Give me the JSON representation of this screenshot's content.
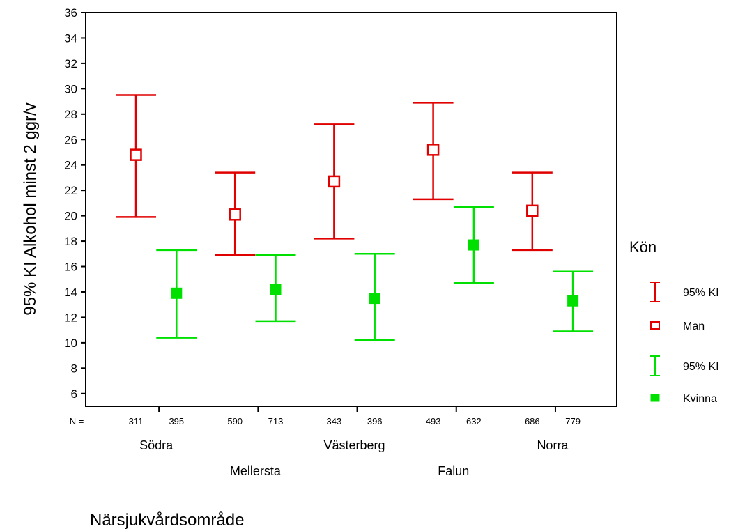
{
  "chart_data": {
    "type": "errorbar",
    "ylabel": "95% KI Alkohol minst 2 ggr/v",
    "xlabel": "Närsjukvårdsområde",
    "ylim": [
      5,
      36
    ],
    "yticks": [
      6,
      8,
      10,
      12,
      14,
      16,
      18,
      20,
      22,
      24,
      26,
      28,
      30,
      32,
      34,
      36
    ],
    "n_prefix": "N =",
    "categories": [
      {
        "name": "Södra",
        "row": 1
      },
      {
        "name": "Mellersta",
        "row": 2
      },
      {
        "name": "Västerberg",
        "row": 1
      },
      {
        "name": "Falun",
        "row": 2
      },
      {
        "name": "Norra",
        "row": 1
      }
    ],
    "series": [
      {
        "name": "Man",
        "color": "#e00000",
        "marker": "open-square",
        "mean": [
          24.8,
          20.1,
          22.7,
          25.2,
          20.4
        ],
        "lower": [
          19.9,
          16.9,
          18.2,
          21.3,
          17.3
        ],
        "upper": [
          29.5,
          23.4,
          27.2,
          28.9,
          23.4
        ],
        "n": [
          "311",
          "590",
          "343",
          "493",
          "686"
        ]
      },
      {
        "name": "Kvinna",
        "color": "#00e000",
        "marker": "filled-square",
        "mean": [
          13.9,
          14.2,
          13.5,
          17.7,
          13.3
        ],
        "lower": [
          10.4,
          11.7,
          10.2,
          14.7,
          10.9
        ],
        "upper": [
          17.3,
          16.9,
          17.0,
          20.7,
          15.6
        ],
        "n": [
          "395",
          "713",
          "396",
          "632",
          "779"
        ]
      }
    ],
    "legend": {
      "title": "Kön",
      "entries": [
        {
          "label": "95% KI",
          "series": 0,
          "kind": "errorbar"
        },
        {
          "label": "Man",
          "series": 0,
          "kind": "marker"
        },
        {
          "label": "95% KI",
          "series": 1,
          "kind": "errorbar"
        },
        {
          "label": "Kvinna",
          "series": 1,
          "kind": "marker"
        }
      ],
      "position": "right"
    }
  }
}
